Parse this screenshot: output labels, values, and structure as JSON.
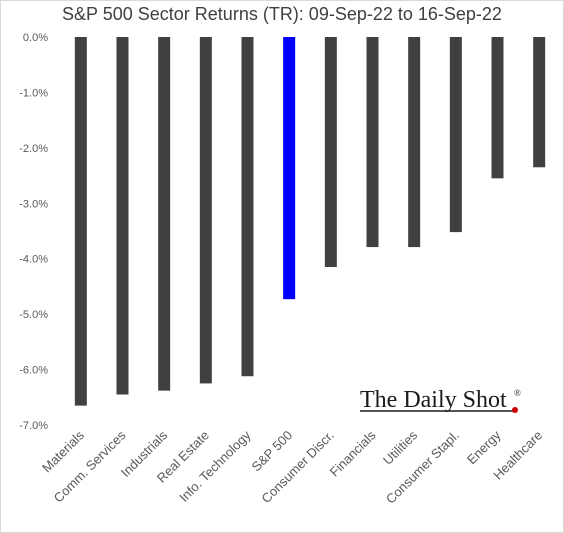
{
  "chart_data": {
    "type": "bar",
    "title": "S&P 500 Sector Returns (TR): 09-Sep-22 to 16-Sep-22",
    "categories": [
      "Materials",
      "Comm. Services",
      "Industrials",
      "Real Estate",
      "Info. Technology",
      "S&P 500",
      "Consumer Discr.",
      "Financials",
      "Utilities",
      "Consumer Stapl.",
      "Energy",
      "Healthcare"
    ],
    "values": [
      -6.65,
      -6.45,
      -6.38,
      -6.25,
      -6.12,
      -4.73,
      -4.15,
      -3.79,
      -3.79,
      -3.52,
      -2.55,
      -2.35
    ],
    "unit": "%",
    "ylim": [
      -7.0,
      0.0
    ],
    "yticks": [
      "0.0%",
      "-1.0%",
      "-2.0%",
      "-3.0%",
      "-4.0%",
      "-5.0%",
      "-6.0%",
      "-7.0%"
    ],
    "xlabel": "",
    "ylabel": "",
    "grid": false,
    "legend": "none",
    "colors": {
      "bar": "#404040",
      "highlight": "#0000ff",
      "highlight_category": "S&P 500"
    }
  },
  "watermark": {
    "text": "The Daily Shot",
    "registered": "®",
    "dot_color": "#cc0000"
  }
}
